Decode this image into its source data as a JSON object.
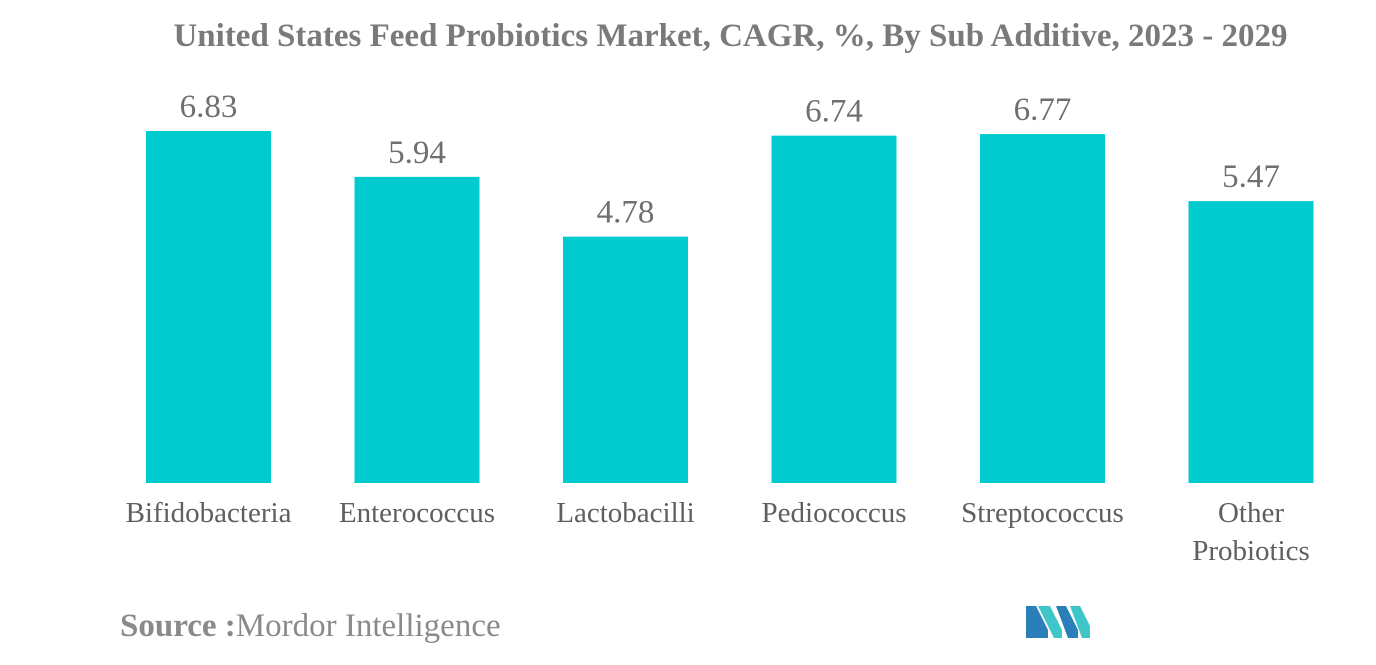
{
  "title": "United States Feed Probiotics Market, CAGR, %, By Sub Additive, 2023 - 2029",
  "source": {
    "label": "Source :",
    "value": "Mordor Intelligence"
  },
  "logo": {
    "icon": "mordor-intelligence-logo",
    "colors": [
      "#2a7fb8",
      "#3fc6c9"
    ]
  },
  "colors": {
    "bar": "#00cccf",
    "title": "#7a7a7a",
    "value_label": "#6f6f6f",
    "category_label": "#5f5f5f"
  },
  "chart_data": {
    "type": "bar",
    "title": "United States Feed Probiotics Market, CAGR, %, By Sub Additive, 2023 - 2029",
    "categories": [
      [
        "Bifidobacteria"
      ],
      [
        "Enterococcus"
      ],
      [
        "Lactobacilli"
      ],
      [
        "Pediococcus"
      ],
      [
        "Streptococcus"
      ],
      [
        "Other",
        "Probiotics"
      ]
    ],
    "values": [
      6.83,
      5.94,
      4.78,
      6.74,
      6.77,
      5.47
    ],
    "value_labels": [
      "6.83",
      "5.94",
      "4.78",
      "6.74",
      "6.77",
      "5.47"
    ],
    "xlabel": "",
    "ylabel": "",
    "ylim": [
      0,
      6.83
    ],
    "grid": false,
    "legend": "none"
  }
}
